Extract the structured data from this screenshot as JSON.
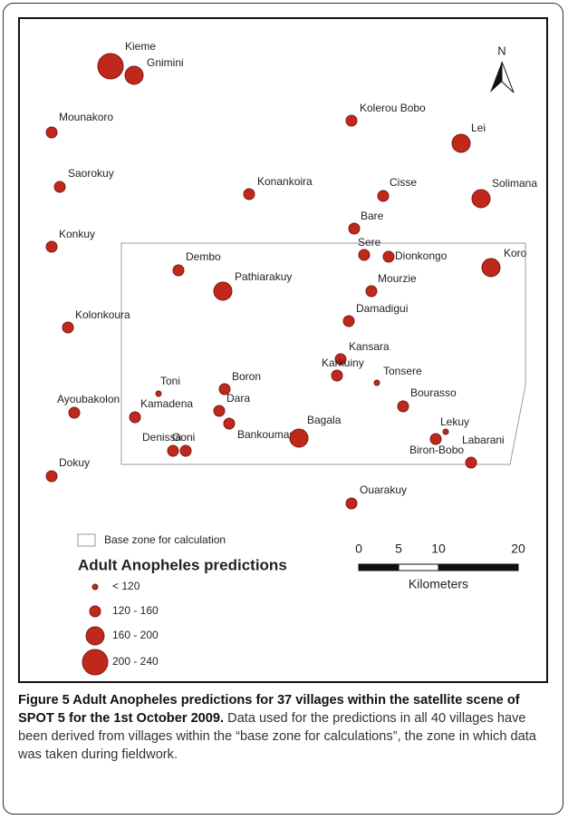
{
  "map": {
    "villages": [
      {
        "name": "Kieme",
        "size_class": 3
      },
      {
        "name": "Gnimini",
        "size_class": 2
      },
      {
        "name": "Mounakoro",
        "size_class": 1
      },
      {
        "name": "Kolerou Bobo",
        "size_class": 1
      },
      {
        "name": "Lei",
        "size_class": 2
      },
      {
        "name": "Saorokuy",
        "size_class": 1
      },
      {
        "name": "Konankoira",
        "size_class": 1
      },
      {
        "name": "Cisse",
        "size_class": 1
      },
      {
        "name": "Solimana",
        "size_class": 2
      },
      {
        "name": "Bare",
        "size_class": 1
      },
      {
        "name": "Konkuy",
        "size_class": 1
      },
      {
        "name": "Sere",
        "size_class": 1
      },
      {
        "name": "Dionkongo",
        "size_class": 1
      },
      {
        "name": "Koro",
        "size_class": 2
      },
      {
        "name": "Dembo",
        "size_class": 1
      },
      {
        "name": "Pathiarakuy",
        "size_class": 2
      },
      {
        "name": "Mourzie",
        "size_class": 1
      },
      {
        "name": "Damadigui",
        "size_class": 1
      },
      {
        "name": "Kolonkoura",
        "size_class": 1
      },
      {
        "name": "Kansara",
        "size_class": 1
      },
      {
        "name": "Karkuiny",
        "size_class": 1
      },
      {
        "name": "Tonsere",
        "size_class": 0
      },
      {
        "name": "Toni",
        "size_class": 0
      },
      {
        "name": "Boron",
        "size_class": 1
      },
      {
        "name": "Bourasso",
        "size_class": 1
      },
      {
        "name": "Ayoubakolon",
        "size_class": 1
      },
      {
        "name": "Kamadena",
        "size_class": 1
      },
      {
        "name": "Dara",
        "size_class": 1
      },
      {
        "name": "Bankoumani",
        "size_class": 1
      },
      {
        "name": "Bagala",
        "size_class": 2
      },
      {
        "name": "Lekuy",
        "size_class": 0
      },
      {
        "name": "Biron-Bobo",
        "size_class": 1
      },
      {
        "name": "Labarani",
        "size_class": 1
      },
      {
        "name": "Denissa",
        "size_class": 1
      },
      {
        "name": "Goni",
        "size_class": 1
      },
      {
        "name": "Dokuy",
        "size_class": 1
      },
      {
        "name": "Ouarakuy",
        "size_class": 1
      }
    ],
    "north_label": "N",
    "base_zone_label": "Base zone for calculation",
    "legend": {
      "title": "Adult Anopheles predictions",
      "items": [
        "< 120",
        "120 - 160",
        "160 - 200",
        "200 - 240"
      ]
    },
    "scale_bar": {
      "ticks": [
        0,
        5,
        10,
        20
      ],
      "unit": "Kilometers"
    }
  },
  "caption": {
    "title": "Figure 5 Adult Anopheles predictions for 37 villages within the satellite scene of SPOT 5 for the 1st October 2009.",
    "text": " Data used for the predictions in all 40 villages have been derived from villages within the “base zone for calculations”, the zone in which data was taken during fieldwork."
  }
}
